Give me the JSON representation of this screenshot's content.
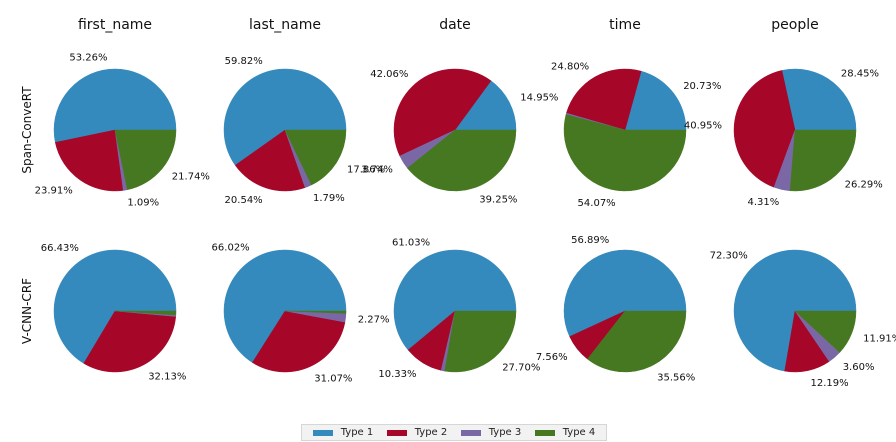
{
  "chart_data": {
    "type": "pie",
    "columns": [
      "first_name",
      "last_name",
      "date",
      "time",
      "people"
    ],
    "rows": [
      "Span-ConveRT",
      "V-CNN-CRF"
    ],
    "legend": {
      "placement": "bottom-center",
      "entries": [
        {
          "label": "Type 1",
          "color": "#348abd"
        },
        {
          "label": "Type 2",
          "color": "#a60628"
        },
        {
          "label": "Type 3",
          "color": "#7a68a6"
        },
        {
          "label": "Type 4",
          "color": "#467821"
        }
      ]
    },
    "pies": [
      {
        "row": "Span-ConveRT",
        "column": "first_name",
        "values": [
          53.26,
          23.91,
          1.09,
          21.74
        ],
        "labels": [
          "53.26%",
          "23.91%",
          "1.09%",
          "21.74%"
        ]
      },
      {
        "row": "Span-ConveRT",
        "column": "last_name",
        "values": [
          59.82,
          20.54,
          1.79,
          17.86
        ],
        "labels": [
          "59.82%",
          "20.54%",
          "1.79%",
          "17.86%"
        ]
      },
      {
        "row": "Span-ConveRT",
        "column": "date",
        "values": [
          14.95,
          42.06,
          3.74,
          39.25
        ],
        "labels": [
          "14.95%",
          "42.06%",
          "3.74%",
          "39.25%"
        ]
      },
      {
        "row": "Span-ConveRT",
        "column": "time",
        "values": [
          20.73,
          24.8,
          0.4,
          54.07
        ],
        "labels": [
          "20.73%",
          "24.80%",
          "",
          "54.07%"
        ]
      },
      {
        "row": "Span-ConveRT",
        "column": "people",
        "values": [
          28.45,
          40.95,
          4.31,
          26.29
        ],
        "labels": [
          "28.45%",
          "40.95%",
          "4.31%",
          "26.29%"
        ]
      },
      {
        "row": "V-CNN-CRF",
        "column": "first_name",
        "values": [
          66.43,
          32.13,
          0.4,
          1.04
        ],
        "labels": [
          "66.43%",
          "32.13%",
          "",
          ""
        ]
      },
      {
        "row": "V-CNN-CRF",
        "column": "last_name",
        "values": [
          66.02,
          31.07,
          2.27,
          0.64
        ],
        "labels": [
          "66.02%",
          "31.07%",
          "2.27%",
          ""
        ]
      },
      {
        "row": "V-CNN-CRF",
        "column": "date",
        "values": [
          61.03,
          10.33,
          0.94,
          27.7
        ],
        "labels": [
          "61.03%",
          "10.33%",
          "",
          "27.70%"
        ]
      },
      {
        "row": "V-CNN-CRF",
        "column": "time",
        "values": [
          56.89,
          7.56,
          0.0,
          35.56
        ],
        "labels": [
          "56.89%",
          "7.56%",
          "",
          "35.56%"
        ]
      },
      {
        "row": "V-CNN-CRF",
        "column": "people",
        "values": [
          72.3,
          12.19,
          3.6,
          11.91
        ],
        "labels": [
          "72.30%",
          "12.19%",
          "3.60%",
          "11.91%"
        ]
      }
    ]
  }
}
